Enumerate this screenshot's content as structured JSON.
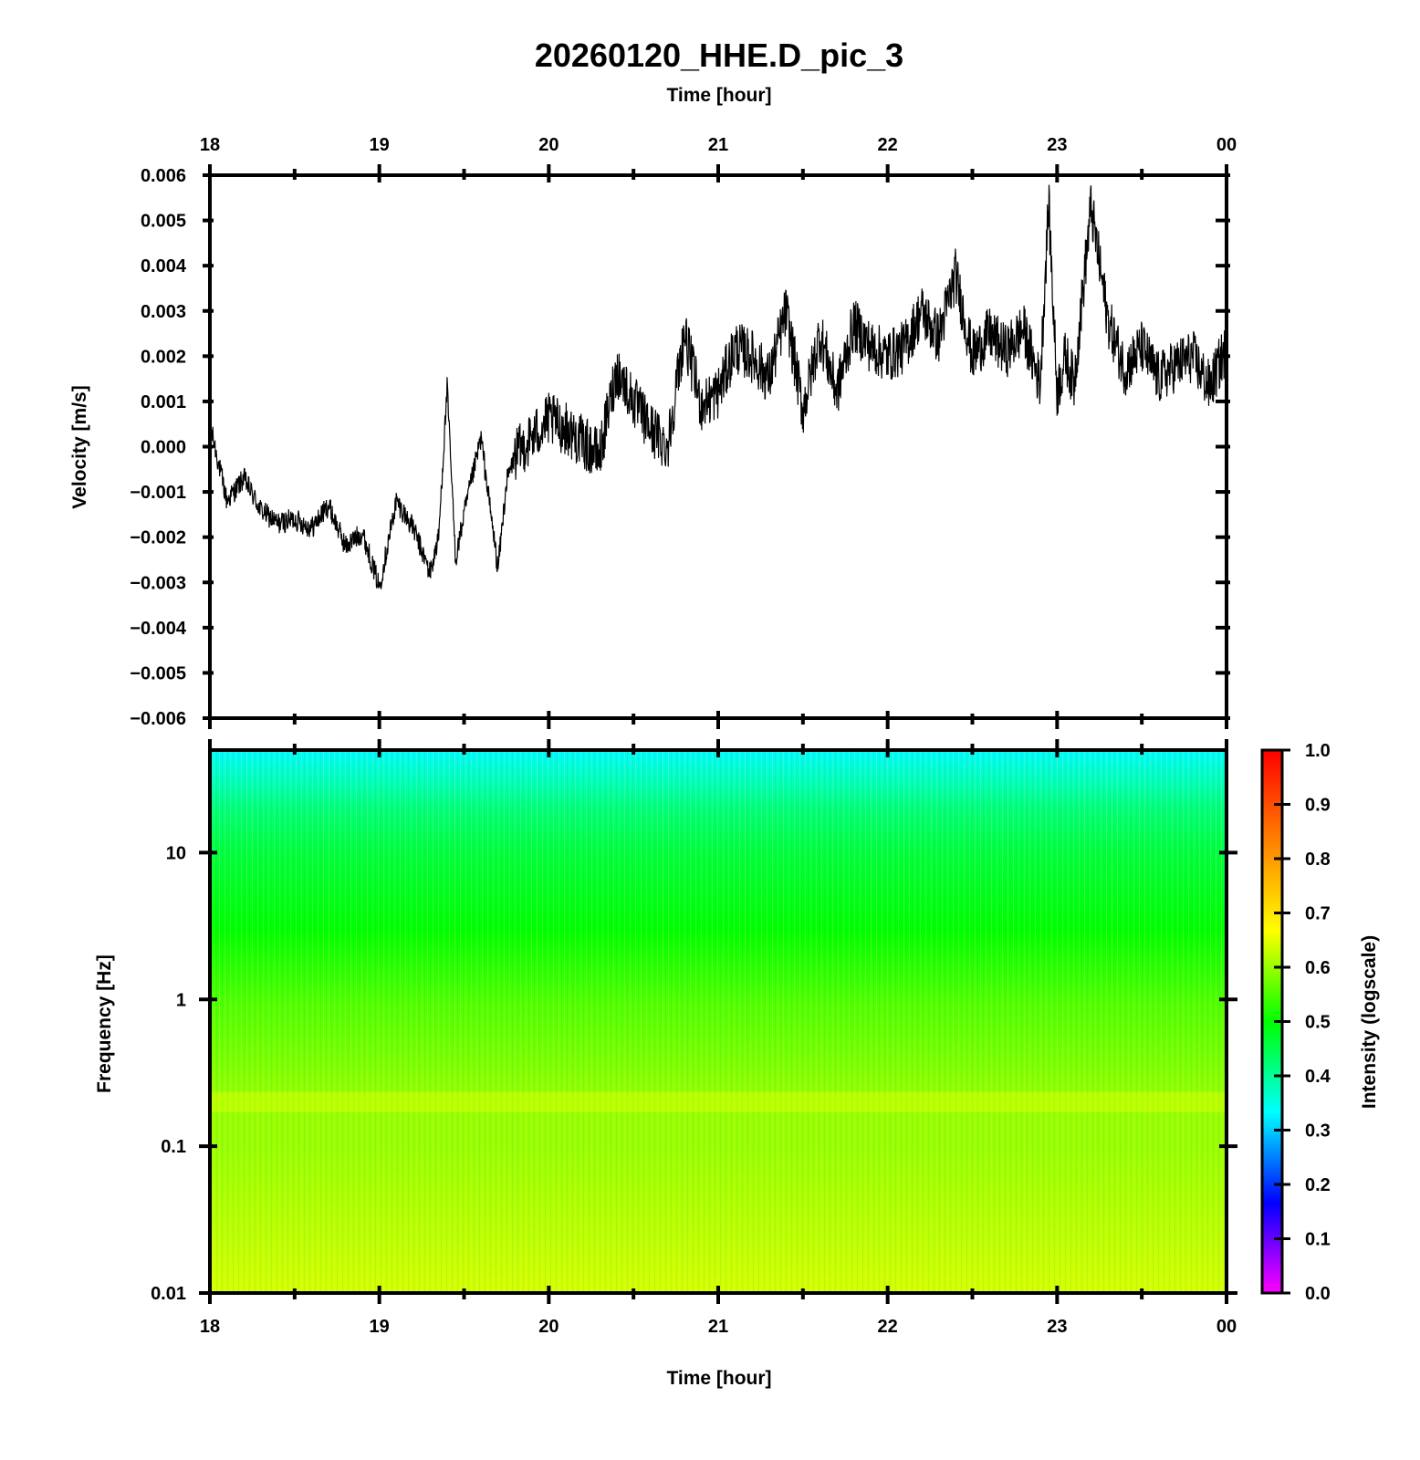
{
  "figure": {
    "title": "20260120_HHE.D_pic_3"
  },
  "chart_data": [
    {
      "type": "line",
      "panel": "waveform",
      "title": "20260120_HHE.D_pic_3",
      "xlabel": "Time [hour]",
      "ylabel": "Velocity [m/s]",
      "x_ticks": [
        "18",
        "19",
        "20",
        "21",
        "22",
        "23",
        "00"
      ],
      "xlim_hours": [
        18,
        24
      ],
      "y_ticks": [
        "0.006",
        "0.005",
        "0.004",
        "0.003",
        "0.002",
        "0.001",
        "0.000",
        "−0.001",
        "−0.002",
        "−0.003",
        "−0.004",
        "−0.005",
        "−0.006"
      ],
      "ylim": [
        -0.006,
        0.006
      ],
      "grid": false,
      "series": [
        {
          "color": "#000000",
          "x": [
            18.0,
            18.1,
            18.2,
            18.3,
            18.4,
            18.5,
            18.6,
            18.7,
            18.8,
            18.9,
            19.0,
            19.1,
            19.2,
            19.3,
            19.35,
            19.4,
            19.45,
            19.5,
            19.6,
            19.7,
            19.75,
            19.8,
            19.9,
            20.0,
            20.1,
            20.2,
            20.3,
            20.4,
            20.5,
            20.6,
            20.7,
            20.8,
            20.9,
            21.0,
            21.1,
            21.2,
            21.3,
            21.4,
            21.5,
            21.6,
            21.7,
            21.8,
            21.9,
            22.0,
            22.1,
            22.2,
            22.3,
            22.4,
            22.5,
            22.6,
            22.7,
            22.8,
            22.9,
            22.95,
            23.0,
            23.05,
            23.1,
            23.2,
            23.3,
            23.4,
            23.5,
            23.6,
            23.7,
            23.8,
            23.9,
            24.0
          ],
          "y": [
            0.0005,
            -0.0012,
            -0.0007,
            -0.0014,
            -0.0017,
            -0.0016,
            -0.0018,
            -0.0013,
            -0.0022,
            -0.0019,
            -0.0031,
            -0.0012,
            -0.0018,
            -0.0028,
            -0.002,
            0.0013,
            -0.0025,
            -0.0015,
            0.0002,
            -0.0027,
            -0.0008,
            -0.0002,
            0.0002,
            0.0006,
            0.0004,
            0.0001,
            -0.0002,
            0.0017,
            0.001,
            0.0004,
            0.0,
            0.0025,
            0.0009,
            0.0012,
            0.0022,
            0.002,
            0.0015,
            0.003,
            0.0008,
            0.0025,
            0.0012,
            0.0027,
            0.0022,
            0.002,
            0.0022,
            0.003,
            0.0024,
            0.0038,
            0.002,
            0.0025,
            0.0021,
            0.0026,
            0.0014,
            0.0054,
            0.0012,
            0.002,
            0.0014,
            0.0053,
            0.0028,
            0.0017,
            0.0022,
            0.0015,
            0.0018,
            0.002,
            0.0013,
            0.0022
          ]
        }
      ]
    },
    {
      "type": "heatmap",
      "panel": "spectrogram",
      "xlabel": "Time [hour]",
      "ylabel": "Frequency [Hz]",
      "x_ticks": [
        "18",
        "19",
        "20",
        "21",
        "22",
        "23",
        "00"
      ],
      "xlim_hours": [
        18,
        24
      ],
      "y_scale": "log",
      "y_ticks": [
        "10",
        "1",
        "0.1",
        "0.01"
      ],
      "ylim_hz": [
        0.01,
        50
      ],
      "colorbar": {
        "label": "Intensity (logscale)",
        "ticks": [
          "1.0",
          "0.9",
          "0.8",
          "0.7",
          "0.6",
          "0.5",
          "0.4",
          "0.3",
          "0.2",
          "0.1",
          "0.0"
        ],
        "range": [
          0.0,
          1.0
        ],
        "colormap": [
          "#ff00ff",
          "#0000ff",
          "#00ffff",
          "#00ff00",
          "#ffff00",
          "#ff8000",
          "#ff0000"
        ]
      },
      "intensity_profile": [
        {
          "freq_hz": 50,
          "intensity": 0.33
        },
        {
          "freq_hz": 30,
          "intensity": 0.38
        },
        {
          "freq_hz": 20,
          "intensity": 0.42
        },
        {
          "freq_hz": 10,
          "intensity": 0.46
        },
        {
          "freq_hz": 3,
          "intensity": 0.5
        },
        {
          "freq_hz": 1,
          "intensity": 0.55
        },
        {
          "freq_hz": 0.2,
          "intensity": 0.6
        },
        {
          "freq_hz": 0.1,
          "intensity": 0.6
        },
        {
          "freq_hz": 0.03,
          "intensity": 0.62
        },
        {
          "freq_hz": 0.01,
          "intensity": 0.64
        }
      ],
      "band_highlight": {
        "freq_hz": 0.2,
        "intensity": 0.66
      }
    }
  ]
}
